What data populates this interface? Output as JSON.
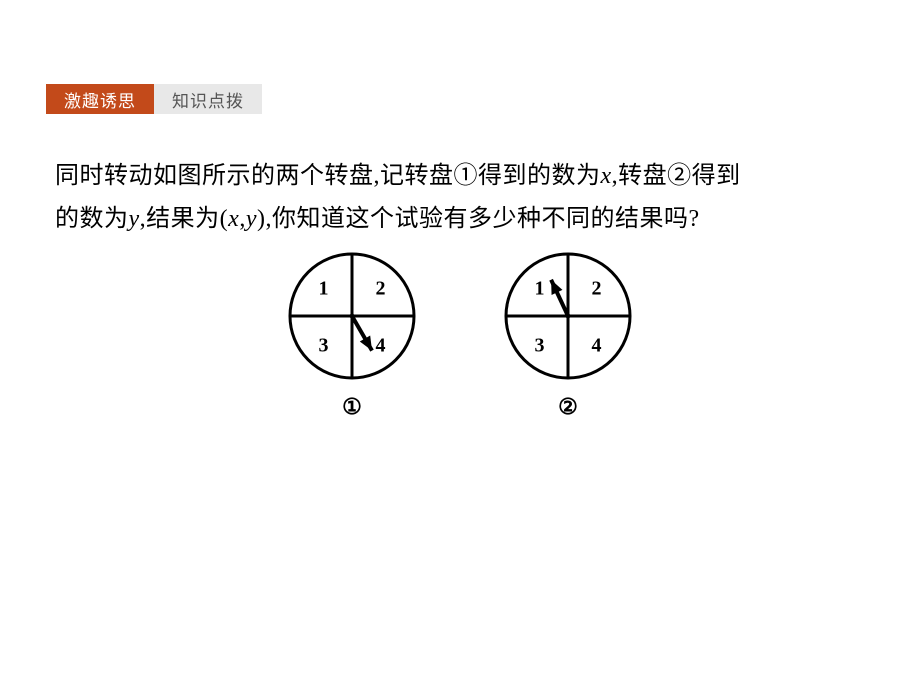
{
  "tabs": {
    "active": "激趣诱思",
    "inactive": "知识点拨"
  },
  "paragraph": {
    "line1_prefix": "同时转动如图所示的两个转盘,记转盘①得到的数为",
    "var_x": "x",
    "line1_mid": ",转盘②得到",
    "line2_prefix": "的数为",
    "var_y": "y",
    "line2_mid1": ",结果为(",
    "pair_sep": ",",
    "line2_mid2": "),你知道这个试验有多少种不同的结果吗?"
  },
  "spinners": [
    {
      "label": "①",
      "quadrants": [
        "1",
        "2",
        "3",
        "4"
      ],
      "arrow": {
        "angle_deg": 300,
        "length": 40
      },
      "radius": 62,
      "stroke": "#000000",
      "stroke_width": 3,
      "number_fontsize": 20
    },
    {
      "label": "②",
      "quadrants": [
        "1",
        "2",
        "3",
        "4"
      ],
      "arrow": {
        "angle_deg": 115,
        "length": 40
      },
      "radius": 62,
      "stroke": "#000000",
      "stroke_width": 3,
      "number_fontsize": 20
    }
  ],
  "colors": {
    "tab_active_bg": "#c34a1a",
    "tab_active_fg": "#ffffff",
    "tab_inactive_bg": "#e8e8e8",
    "tab_inactive_fg": "#555555",
    "text": "#000000",
    "background": "#ffffff"
  }
}
